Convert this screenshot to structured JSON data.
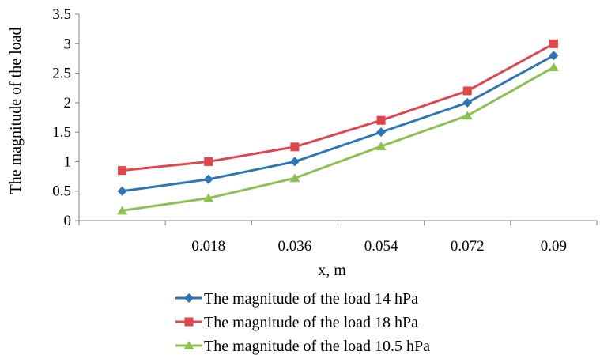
{
  "chart_data": {
    "type": "line",
    "title": "",
    "xlabel": "x, m",
    "ylabel": "The magnitude of the load",
    "categories": [
      "",
      "0.018",
      "0.036",
      "0.054",
      "0.072",
      "0.09"
    ],
    "ylim": [
      0,
      3.5
    ],
    "yticks": [
      "0",
      "0.5",
      "1",
      "1.5",
      "2",
      "2.5",
      "3",
      "3.5"
    ],
    "grid": false,
    "legend_position": "bottom",
    "series": [
      {
        "name": "The magnitude of the load 14 hPa",
        "color": "#2E75B6",
        "marker": "diamond",
        "values": [
          0.5,
          0.7,
          1.0,
          1.5,
          2.0,
          2.8
        ]
      },
      {
        "name": "The magnitude of the load 18 hPa",
        "color": "#E0474C",
        "marker": "square",
        "values": [
          0.85,
          1.0,
          1.25,
          1.7,
          2.2,
          3.0
        ]
      },
      {
        "name": "The magnitude of the load 10.5 hPa",
        "color": "#8CC152",
        "marker": "triangle",
        "values": [
          0.17,
          0.38,
          0.72,
          1.26,
          1.78,
          2.6
        ]
      }
    ]
  }
}
